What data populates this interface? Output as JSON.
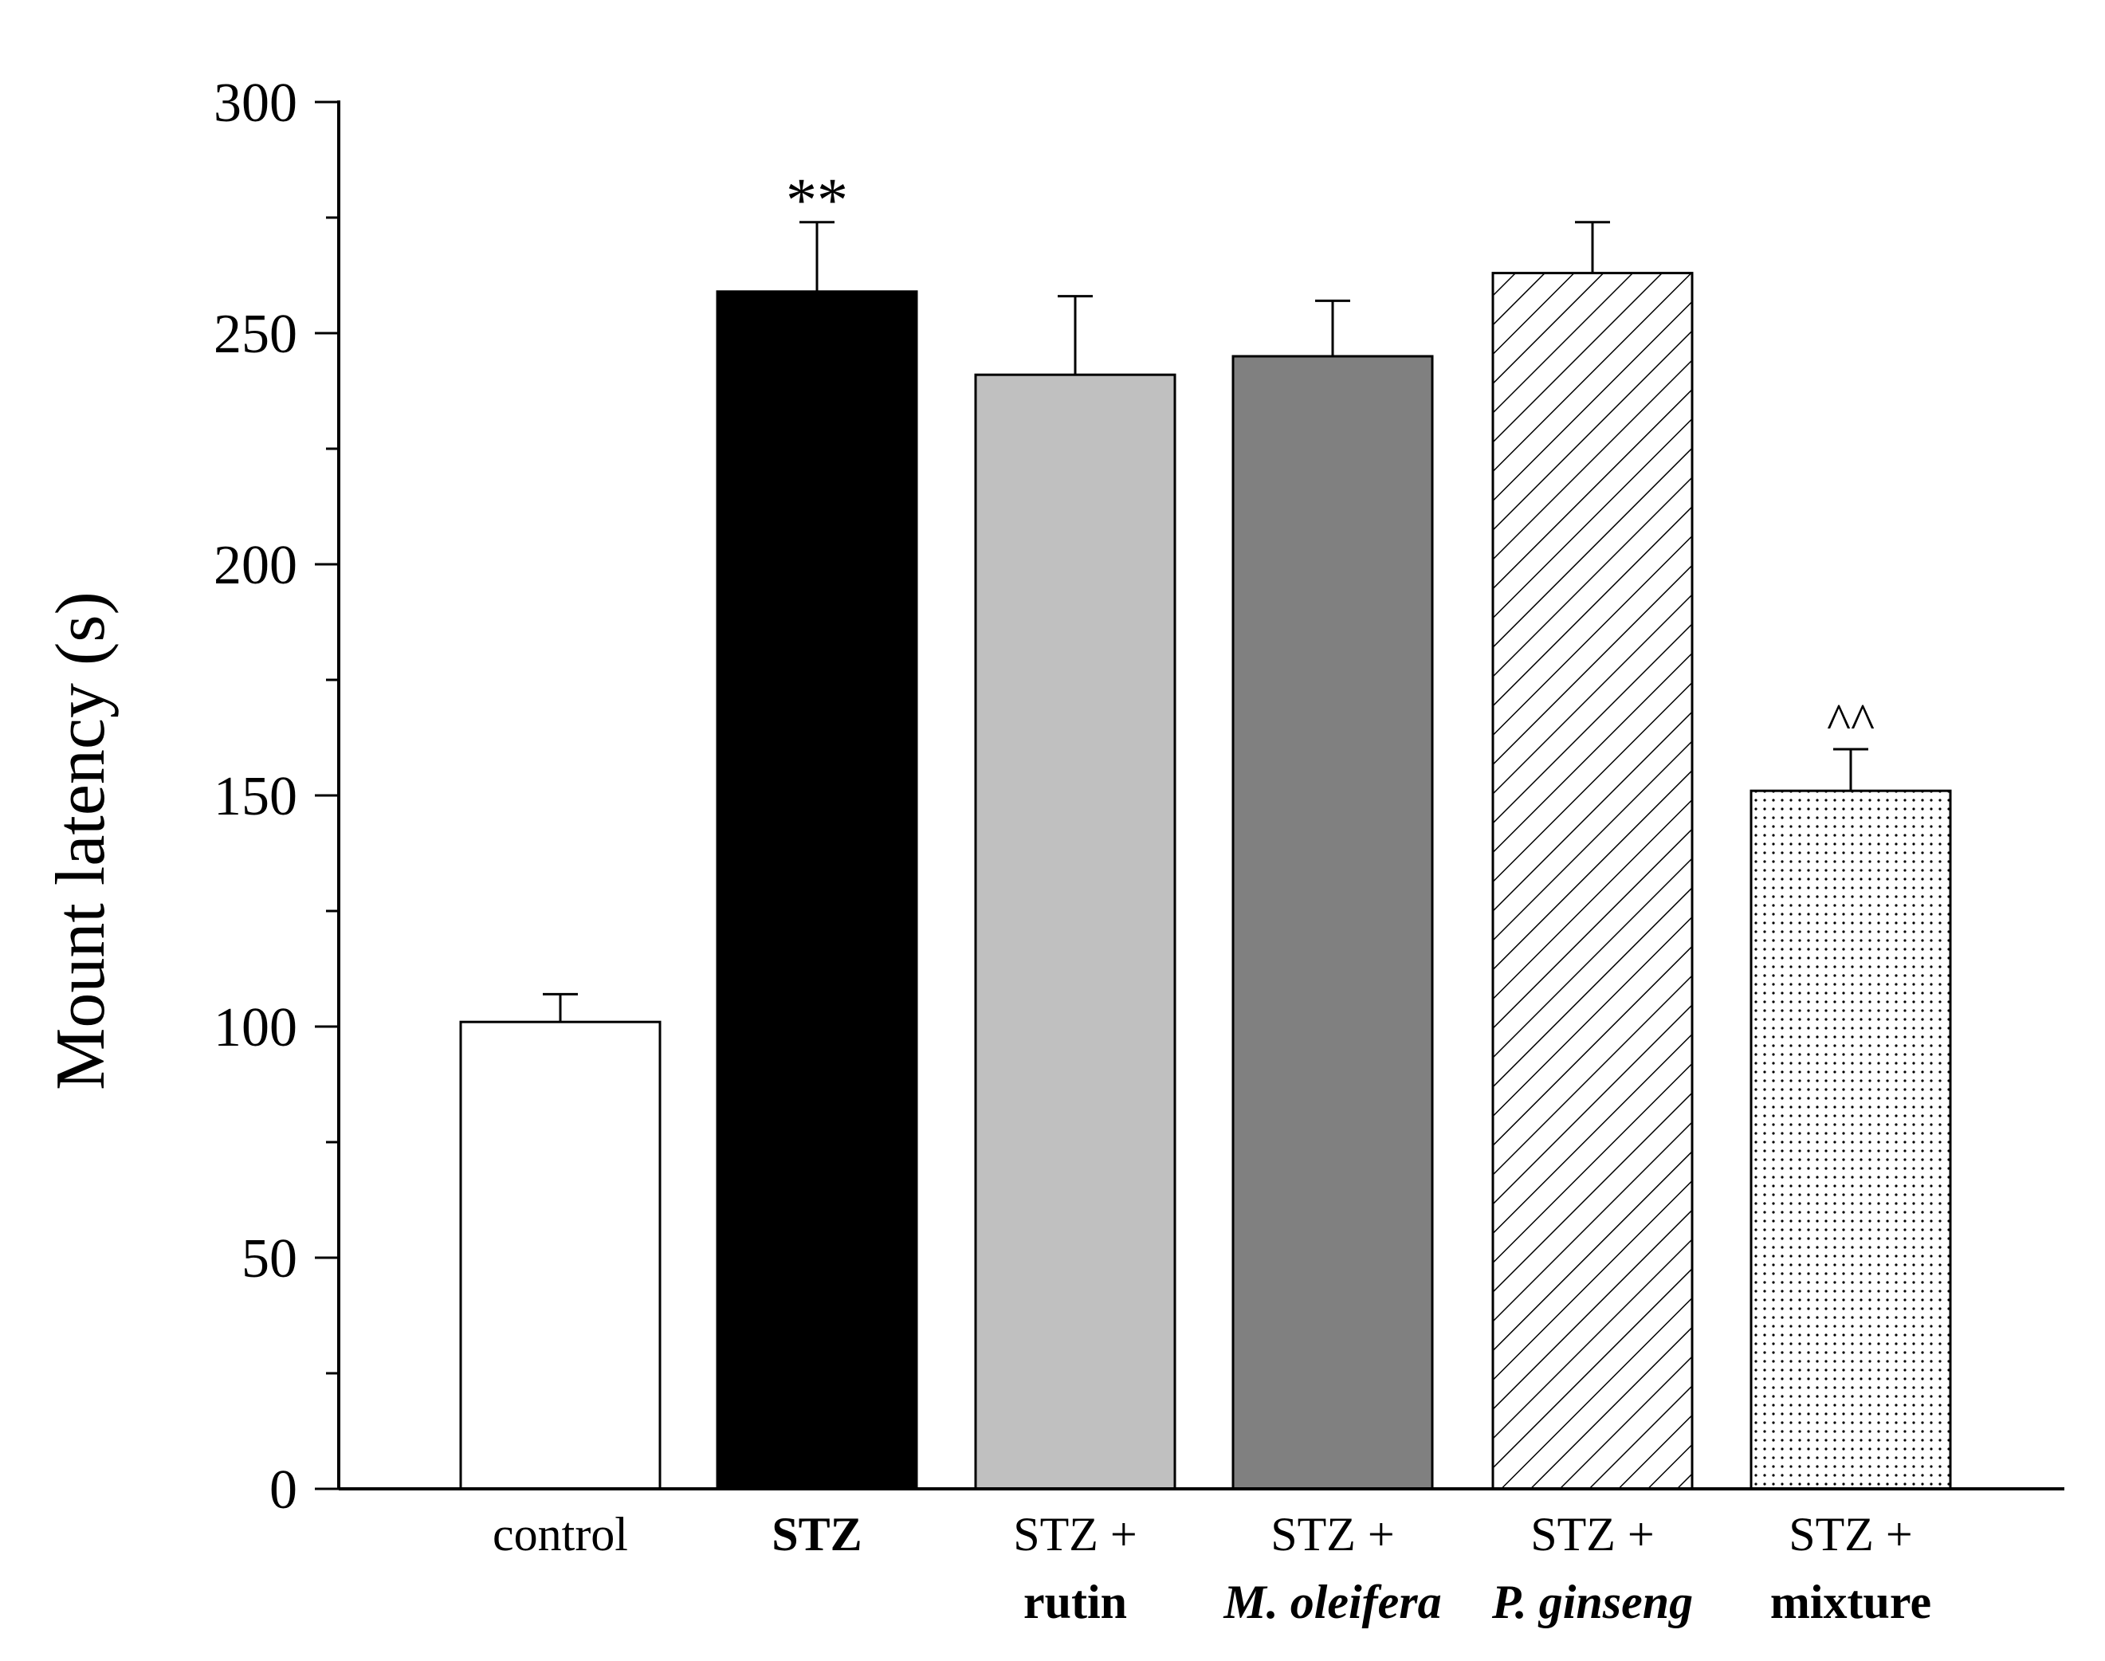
{
  "chart_data": {
    "type": "bar",
    "title": "",
    "xlabel": "",
    "ylabel": "Mount latency (s)",
    "ylim": [
      0,
      300
    ],
    "yticks": [
      "0",
      "50",
      "100",
      "150",
      "200",
      "250",
      "300"
    ],
    "grid": false,
    "categories": [
      {
        "line1": "control",
        "line1_style": "normal",
        "line2": "",
        "line2_style": "normal"
      },
      {
        "line1": "STZ",
        "line1_style": "bold",
        "line2": "",
        "line2_style": "normal"
      },
      {
        "line1": "STZ +",
        "line1_style": "normal",
        "line2": "rutin",
        "line2_style": "bold"
      },
      {
        "line1": "STZ +",
        "line1_style": "normal",
        "line2": "M. oleifera",
        "line2_style": "bold-italic"
      },
      {
        "line1": "STZ +",
        "line1_style": "normal",
        "line2": "P. ginseng",
        "line2_style": "bold-italic"
      },
      {
        "line1": "STZ +",
        "line1_style": "normal",
        "line2": "mixture",
        "line2_style": "bold"
      }
    ],
    "values": [
      101,
      259,
      241,
      245,
      263,
      151
    ],
    "errors": [
      6,
      15,
      17,
      12,
      11,
      9
    ],
    "fills": [
      "white",
      "black",
      "lightgray",
      "gray",
      "hatch",
      "dots"
    ],
    "colors": {
      "white": "#ffffff",
      "black": "#000000",
      "lightgray": "#c0c0c0",
      "gray": "#808080"
    },
    "annotations": [
      "",
      "**",
      "",
      "",
      "",
      "^^"
    ]
  }
}
